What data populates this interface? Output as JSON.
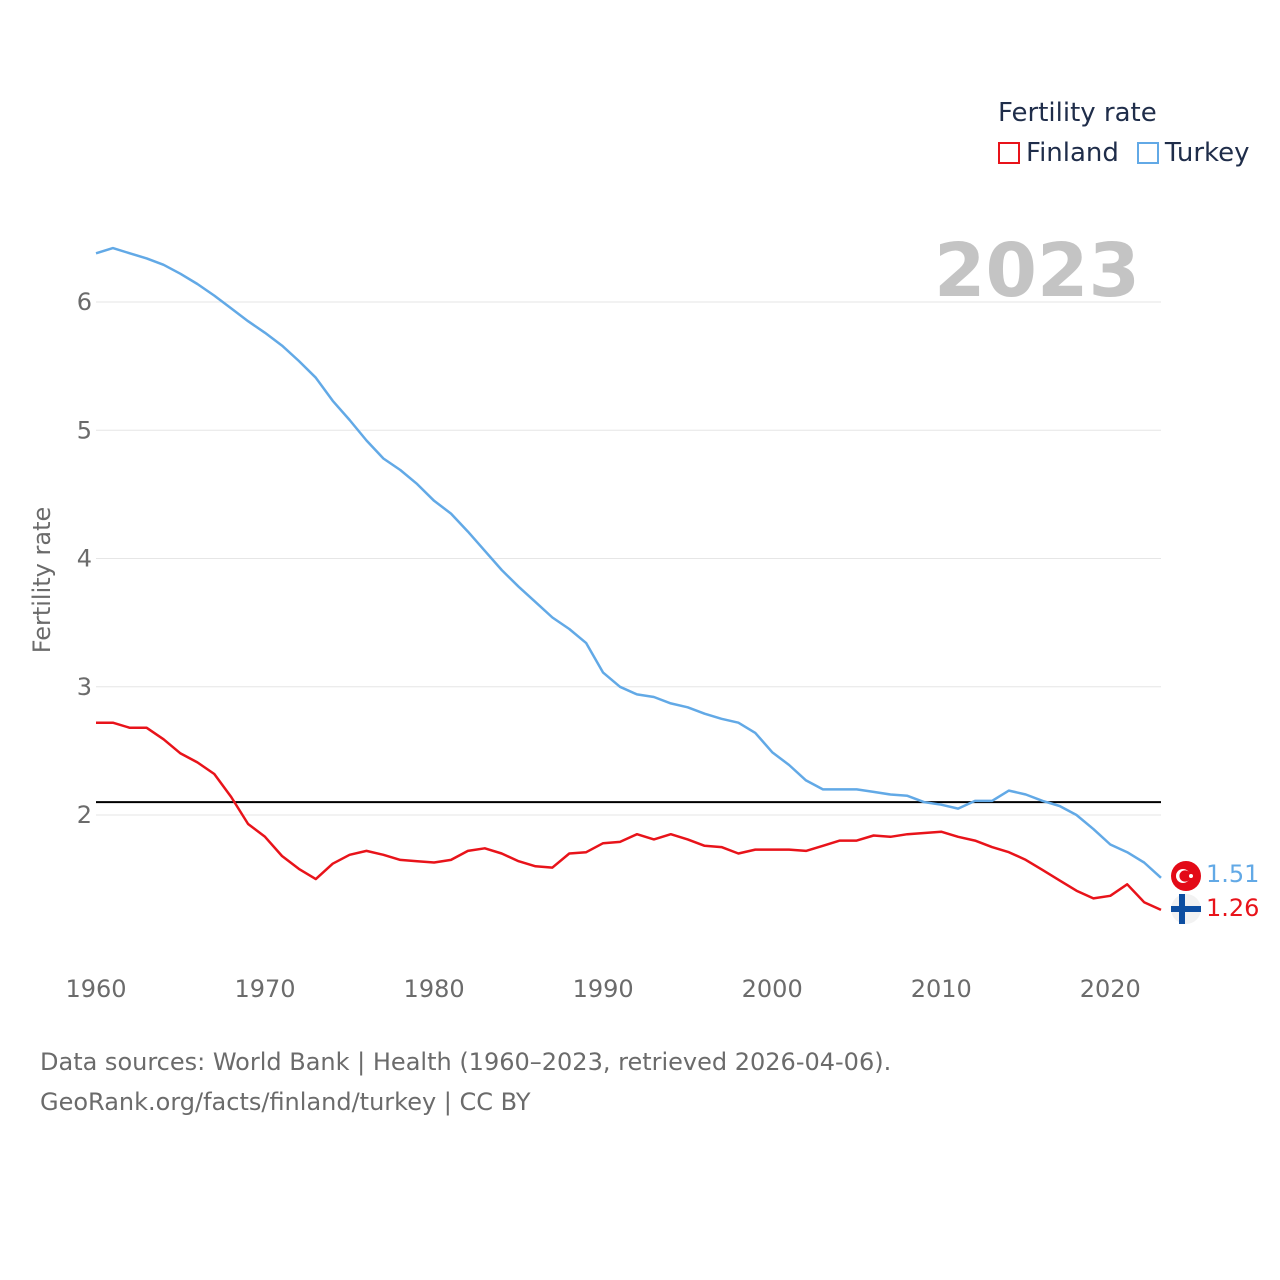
{
  "legend": {
    "title": "Fertility rate",
    "items": [
      {
        "label": "Finland",
        "color": "#e8131a"
      },
      {
        "label": "Turkey",
        "color": "#62a9e6"
      }
    ]
  },
  "year_watermark": "2023",
  "footer": {
    "line1": "Data sources: World Bank | Health (1960–2023, retrieved 2026-04-06).",
    "line2": "GeoRank.org/facts/finland/turkey | CC BY"
  },
  "end_values": {
    "turkey": "1.51",
    "finland": "1.26"
  },
  "chart_data": {
    "type": "line",
    "title": "Fertility rate",
    "xlabel": "",
    "ylabel": "Fertility rate",
    "xlim": [
      1960,
      2023
    ],
    "ylim": [
      1,
      6.5
    ],
    "x_ticks": [
      "1960",
      "1970",
      "1980",
      "1990",
      "2000",
      "2010",
      "2020"
    ],
    "y_ticks": [
      "2",
      "3",
      "4",
      "5",
      "6"
    ],
    "reference_line": {
      "value": 2.1,
      "color": "#000000"
    },
    "x": [
      1960,
      1961,
      1962,
      1963,
      1964,
      1965,
      1966,
      1967,
      1968,
      1969,
      1970,
      1971,
      1972,
      1973,
      1974,
      1975,
      1976,
      1977,
      1978,
      1979,
      1980,
      1981,
      1982,
      1983,
      1984,
      1985,
      1986,
      1987,
      1988,
      1989,
      1990,
      1991,
      1992,
      1993,
      1994,
      1995,
      1996,
      1997,
      1998,
      1999,
      2000,
      2001,
      2002,
      2003,
      2004,
      2005,
      2006,
      2007,
      2008,
      2009,
      2010,
      2011,
      2012,
      2013,
      2014,
      2015,
      2016,
      2017,
      2018,
      2019,
      2020,
      2021,
      2022,
      2023
    ],
    "series": [
      {
        "name": "Finland",
        "color": "#e8131a",
        "values": [
          2.72,
          2.72,
          2.68,
          2.68,
          2.59,
          2.48,
          2.41,
          2.32,
          2.14,
          1.93,
          1.83,
          1.68,
          1.58,
          1.5,
          1.62,
          1.69,
          1.72,
          1.69,
          1.65,
          1.64,
          1.63,
          1.65,
          1.72,
          1.74,
          1.7,
          1.64,
          1.6,
          1.59,
          1.7,
          1.71,
          1.78,
          1.79,
          1.85,
          1.81,
          1.85,
          1.81,
          1.76,
          1.75,
          1.7,
          1.73,
          1.73,
          1.73,
          1.72,
          1.76,
          1.8,
          1.8,
          1.84,
          1.83,
          1.85,
          1.86,
          1.87,
          1.83,
          1.8,
          1.75,
          1.71,
          1.65,
          1.57,
          1.49,
          1.41,
          1.35,
          1.37,
          1.46,
          1.32,
          1.26
        ]
      },
      {
        "name": "Turkey",
        "color": "#62a9e6",
        "values": [
          6.38,
          6.42,
          6.38,
          6.34,
          6.29,
          6.22,
          6.14,
          6.05,
          5.95,
          5.85,
          5.76,
          5.66,
          5.54,
          5.41,
          5.23,
          5.08,
          4.92,
          4.78,
          4.69,
          4.58,
          4.45,
          4.35,
          4.21,
          4.06,
          3.91,
          3.78,
          3.66,
          3.54,
          3.45,
          3.34,
          3.11,
          3.0,
          2.94,
          2.92,
          2.87,
          2.84,
          2.79,
          2.75,
          2.72,
          2.64,
          2.49,
          2.39,
          2.27,
          2.2,
          2.2,
          2.2,
          2.18,
          2.16,
          2.15,
          2.1,
          2.08,
          2.05,
          2.11,
          2.11,
          2.19,
          2.16,
          2.11,
          2.07,
          2.0,
          1.89,
          1.77,
          1.71,
          1.63,
          1.51
        ]
      }
    ]
  }
}
